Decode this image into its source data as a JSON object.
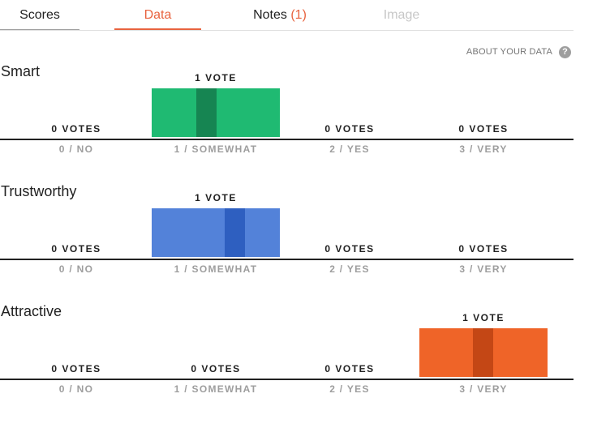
{
  "tabs": {
    "scores": "Scores",
    "data": "Data",
    "notes": "Notes",
    "notes_count": "(1)",
    "image": "Image"
  },
  "about": {
    "label": "ABOUT YOUR DATA",
    "icon": "help-circle-icon",
    "icon_glyph": "?"
  },
  "colors": {
    "accent": "#e8633f",
    "smart": "#1fba72",
    "smart_band": "#168552",
    "trustworthy": "#5382d9",
    "trustworthy_band": "#2e5fc0",
    "attractive": "#ef6428",
    "attractive_band": "#c44715"
  },
  "chart_data": [
    {
      "type": "bar",
      "title": "Smart",
      "categories": [
        "0 / NO",
        "1 / SOMEWHAT",
        "2 / YES",
        "3 / VERY"
      ],
      "values": [
        0,
        1,
        0,
        0
      ],
      "value_labels": [
        "0 VOTES",
        "1 VOTE",
        "0 VOTES",
        "0 VOTES"
      ],
      "color": "#1fba72",
      "band_color": "#168552"
    },
    {
      "type": "bar",
      "title": "Trustworthy",
      "categories": [
        "0 / NO",
        "1 / SOMEWHAT",
        "2 / YES",
        "3 / VERY"
      ],
      "values": [
        0,
        1,
        0,
        0
      ],
      "value_labels": [
        "0 VOTES",
        "1 VOTE",
        "0 VOTES",
        "0 VOTES"
      ],
      "color": "#5382d9",
      "band_color": "#2e5fc0"
    },
    {
      "type": "bar",
      "title": "Attractive",
      "categories": [
        "0 / NO",
        "1 / SOMEWHAT",
        "2 / YES",
        "3 / VERY"
      ],
      "values": [
        0,
        0,
        0,
        1
      ],
      "value_labels": [
        "0 VOTES",
        "0 VOTES",
        "0 VOTES",
        "1 VOTE"
      ],
      "color": "#ef6428",
      "band_color": "#c44715"
    }
  ]
}
